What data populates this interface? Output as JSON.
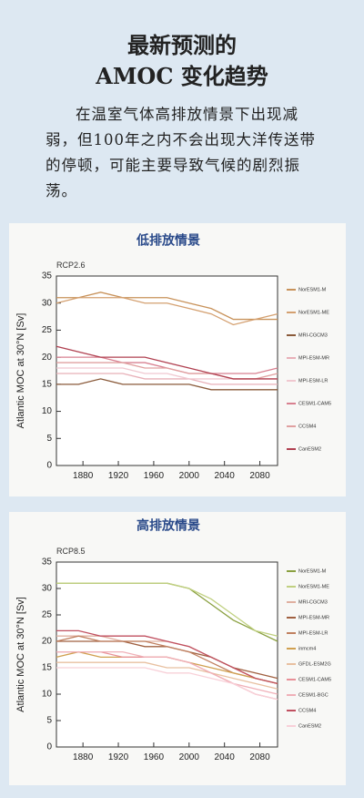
{
  "header": {
    "title_lines": [
      "最新预测的",
      "AMOC 变化趋势"
    ],
    "paragraph": "在温室气体高排放情景下出现减弱，但100年之内不会出现大洋传送带的停顿，可能主要导致气候的剧烈振荡。"
  },
  "chart_data": [
    {
      "type": "line",
      "title": "低排放情景",
      "subtitle": "RCP2.6",
      "y_label": "Atlantic MOC at 30°N [Sv]",
      "legend": "right",
      "x": [
        1850,
        1875,
        1900,
        1925,
        1950,
        1975,
        2000,
        2025,
        2050,
        2075,
        2100
      ],
      "xlim": [
        1850,
        2100
      ],
      "xticks": [
        1880,
        1920,
        1960,
        2000,
        2040,
        2080
      ],
      "ylim": [
        0,
        35
      ],
      "yticks": [
        0,
        5,
        10,
        15,
        20,
        25,
        30,
        35
      ],
      "series": [
        {
          "name": "NorESM1-M",
          "color": "#c8925a",
          "values": [
            31,
            31,
            32,
            31,
            31,
            31,
            30,
            29,
            27,
            27,
            27
          ]
        },
        {
          "name": "NorESM1-ME",
          "color": "#d4a070",
          "values": [
            30,
            31,
            31,
            31,
            30,
            30,
            29,
            28,
            26,
            27,
            28
          ]
        },
        {
          "name": "MRI-CGCM3",
          "color": "#8a5a3a",
          "values": [
            15,
            15,
            16,
            15,
            15,
            15,
            15,
            14,
            14,
            14,
            14
          ]
        },
        {
          "name": "MPI-ESM-MR",
          "color": "#e8b0b8",
          "values": [
            17,
            17,
            17,
            17,
            16,
            16,
            16,
            15,
            15,
            15,
            15
          ]
        },
        {
          "name": "MPI-ESM-LR",
          "color": "#f0c8d0",
          "values": [
            18,
            18,
            18,
            18,
            17,
            17,
            16,
            16,
            16,
            16,
            16
          ]
        },
        {
          "name": "CESM1-CAM5",
          "color": "#d88090",
          "values": [
            20,
            20,
            20,
            19,
            19,
            18,
            17,
            17,
            17,
            17,
            18
          ]
        },
        {
          "name": "CCSM4",
          "color": "#e0a0a0",
          "values": [
            19,
            19,
            19,
            19,
            18,
            18,
            17,
            17,
            16,
            16,
            17
          ]
        },
        {
          "name": "CanESM2",
          "color": "#b04050",
          "values": [
            22,
            21,
            20,
            20,
            20,
            19,
            18,
            17,
            16,
            16,
            16
          ]
        }
      ]
    },
    {
      "type": "line",
      "title": "高排放情景",
      "subtitle": "RCP8.5",
      "y_label": "Atlantic MOC at 30°N [Sv]",
      "legend": "right",
      "x": [
        1850,
        1875,
        1900,
        1925,
        1950,
        1975,
        2000,
        2025,
        2050,
        2075,
        2100
      ],
      "xlim": [
        1850,
        2100
      ],
      "xticks": [
        1880,
        1920,
        1960,
        2000,
        2040,
        2080
      ],
      "ylim": [
        0,
        35
      ],
      "yticks": [
        0,
        5,
        10,
        15,
        20,
        25,
        30,
        35
      ],
      "series": [
        {
          "name": "NorESM1-M",
          "color": "#8aa040",
          "values": [
            31,
            31,
            31,
            31,
            31,
            31,
            30,
            27,
            24,
            22,
            20
          ]
        },
        {
          "name": "NorESM1-ME",
          "color": "#c0d080",
          "values": [
            31,
            31,
            31,
            31,
            31,
            31,
            30,
            28,
            25,
            22,
            21
          ]
        },
        {
          "name": "MRI-CGCM3",
          "color": "#e0b0a0",
          "values": [
            21,
            21,
            21,
            20,
            20,
            20,
            19,
            17,
            15,
            13,
            12
          ]
        },
        {
          "name": "MPI-ESM-MR",
          "color": "#a06040",
          "values": [
            20,
            20,
            20,
            20,
            19,
            19,
            18,
            17,
            15,
            14,
            13
          ]
        },
        {
          "name": "MPI-ESM-LR",
          "color": "#c08060",
          "values": [
            20,
            21,
            20,
            20,
            20,
            19,
            18,
            16,
            14,
            13,
            12
          ]
        },
        {
          "name": "inmcm4",
          "color": "#d0a050",
          "values": [
            17,
            18,
            17,
            17,
            17,
            17,
            16,
            15,
            14,
            13,
            12
          ]
        },
        {
          "name": "GFDL-ESM2G",
          "color": "#e8c0a0",
          "values": [
            16,
            16,
            16,
            16,
            16,
            15,
            15,
            14,
            13,
            12,
            11
          ]
        },
        {
          "name": "CESM1-CAM5",
          "color": "#e89098",
          "values": [
            18,
            18,
            18,
            17,
            17,
            17,
            16,
            14,
            12,
            10,
            9
          ]
        },
        {
          "name": "CESM1-BGC",
          "color": "#f0b0b8",
          "values": [
            18,
            18,
            18,
            18,
            17,
            17,
            16,
            14,
            12,
            11,
            10
          ]
        },
        {
          "name": "CCSM4",
          "color": "#c05060",
          "values": [
            22,
            22,
            21,
            21,
            21,
            20,
            19,
            17,
            15,
            13,
            12
          ]
        },
        {
          "name": "CanESM2",
          "color": "#f8d0d8",
          "values": [
            15,
            15,
            15,
            15,
            15,
            14,
            14,
            13,
            12,
            10,
            9
          ]
        }
      ]
    }
  ]
}
